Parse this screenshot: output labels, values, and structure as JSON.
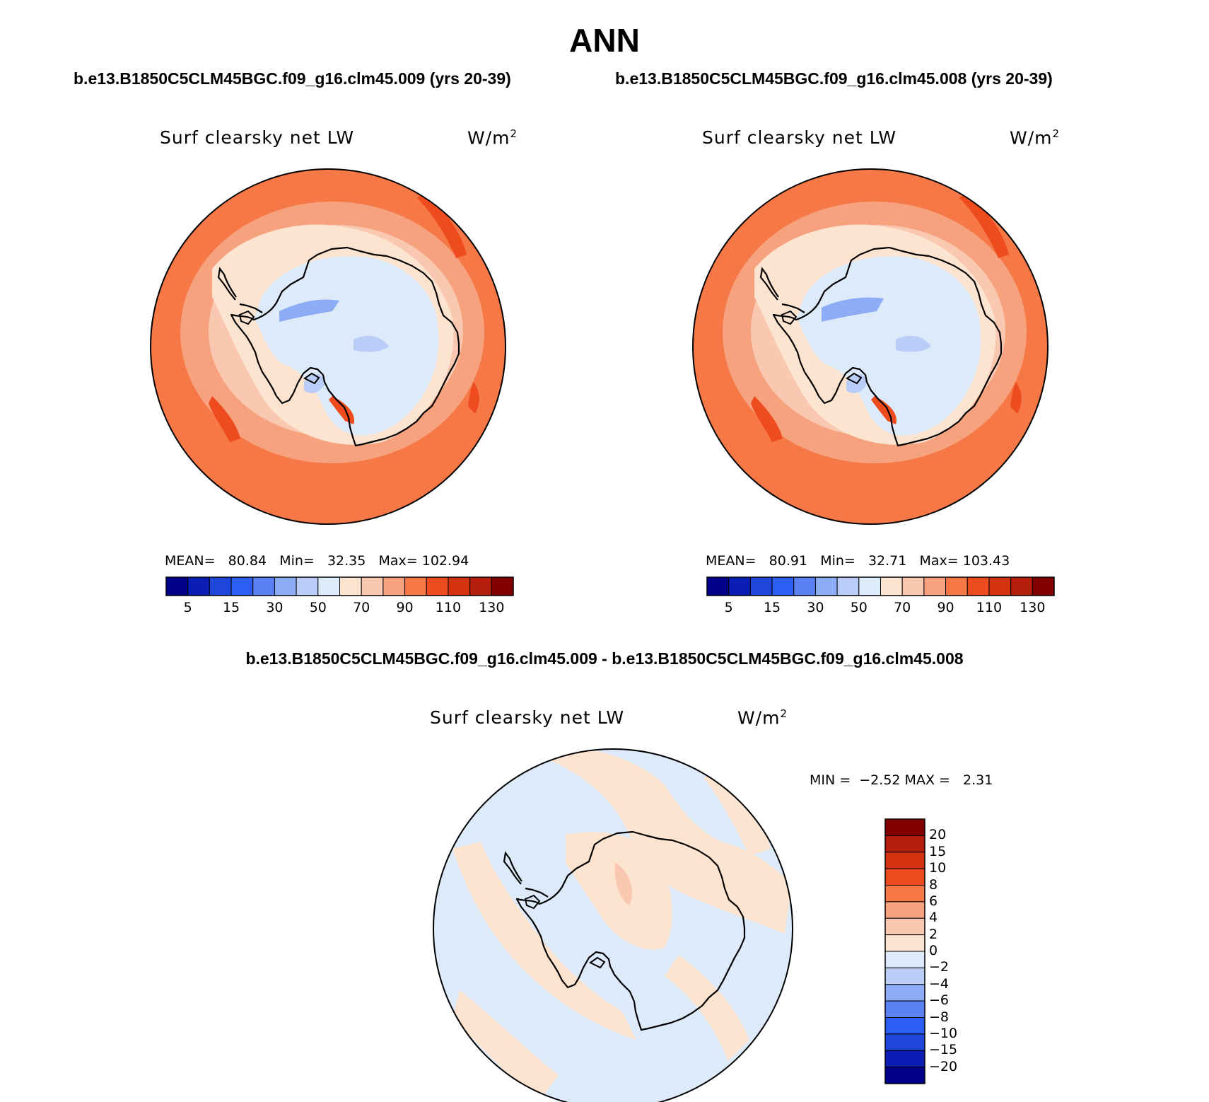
{
  "title": "ANN",
  "case_a_title": "b.e13.B1850C5CLM45BGC.f09_g16.clm45.009 (yrs 20-39)",
  "case_b_title": "b.e13.B1850C5CLM45BGC.f09_g16.clm45.008 (yrs 20-39)",
  "diff_title": "b.e13.B1850C5CLM45BGC.f09_g16.clm45.009 - b.e13.B1850C5CLM45BGC.f09_g16.clm45.008",
  "variable": "Surf clearsky net LW",
  "units_base": "W/m",
  "units_exp": "2",
  "panel_a": {
    "mean_label": "MEAN=",
    "mean": "80.84",
    "min_label": "Min=",
    "min": "32.35",
    "max_label": "Max=",
    "max": "102.94"
  },
  "panel_b": {
    "mean_label": "MEAN=",
    "mean": "80.91",
    "min_label": "Min=",
    "min": "32.71",
    "max_label": "Max=",
    "max": "103.43"
  },
  "diff": {
    "min_label": "MIN =",
    "min": "−2.52",
    "max_label": "MAX =",
    "max": "2.31"
  },
  "colorbar_abs": {
    "labels": [
      "5",
      "15",
      "30",
      "50",
      "70",
      "90",
      "110",
      "130"
    ],
    "colors": [
      "#00008b",
      "#0a1eb4",
      "#1e46dc",
      "#2d5ff5",
      "#5a82f5",
      "#8cacf5",
      "#b9cdf8",
      "#dceafa",
      "#fde4d0",
      "#fac8b0",
      "#f7a27e",
      "#f57846",
      "#ee4b1e",
      "#d2320f",
      "#b41e0a",
      "#820000"
    ]
  },
  "colorbar_diff": {
    "labels": [
      "20",
      "15",
      "10",
      "8",
      "6",
      "4",
      "2",
      "0",
      "−2",
      "−4",
      "−6",
      "−8",
      "−10",
      "−15",
      "−20"
    ],
    "colors": [
      "#820000",
      "#b41e0a",
      "#d2320f",
      "#ee4b1e",
      "#f57846",
      "#f7a27e",
      "#fac8b0",
      "#fde4d0",
      "#dceafa",
      "#b9cdf8",
      "#8cacf5",
      "#5a82f5",
      "#2d5ff5",
      "#1e46dc",
      "#0a1eb4",
      "#00008b"
    ]
  }
}
